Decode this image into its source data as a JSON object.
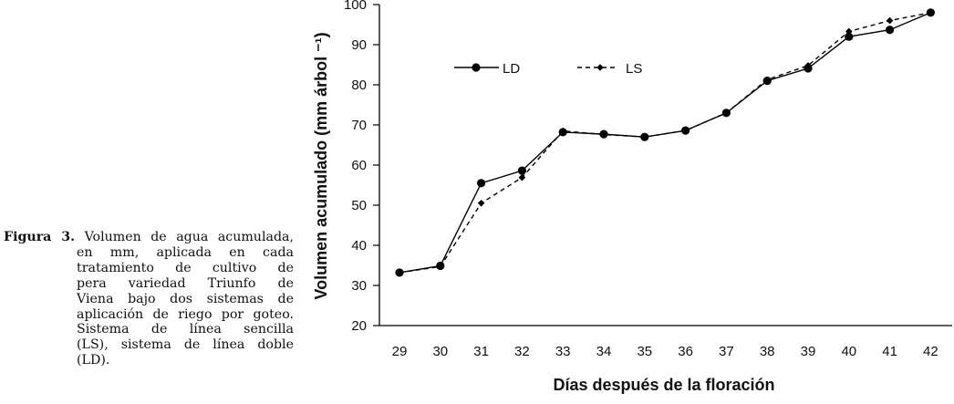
{
  "caption": {
    "label": "Figura 3.",
    "lines": [
      "Volumen de agua acumulada,",
      "en mm, aplicada en cada",
      "tratamiento de cultivo de",
      "pera variedad Triunfo de",
      "Viena bajo dos sistemas de",
      "aplicación de riego por goteo.",
      "Sistema de línea sencilla",
      "(LS), sistema de línea doble",
      "(LD)."
    ]
  },
  "chart_data": {
    "type": "line",
    "title": "",
    "xlabel": "Días después de la floración",
    "ylabel": "Volumen acumulado (mm árbol ⁻¹)",
    "ylim": [
      20,
      100
    ],
    "yticks": [
      20,
      30,
      40,
      50,
      60,
      70,
      80,
      90,
      100
    ],
    "categories": [
      "29",
      "30",
      "31",
      "32",
      "33",
      "34",
      "35",
      "36",
      "37",
      "38",
      "39",
      "40",
      "41",
      "42"
    ],
    "grid": false,
    "legend_position": "top-left",
    "series": [
      {
        "name": "LD",
        "style": "solid",
        "marker": "circle",
        "color": "#000000",
        "values": [
          33.2,
          34.9,
          55.5,
          58.6,
          68.2,
          67.7,
          67.0,
          68.6,
          73.0,
          81.0,
          84.1,
          92.0,
          93.7,
          98.0
        ]
      },
      {
        "name": "LS",
        "style": "dashed",
        "marker": "diamond",
        "color": "#000000",
        "values": [
          33.2,
          34.7,
          50.5,
          56.9,
          68.5,
          67.6,
          67.0,
          68.6,
          73.0,
          81.3,
          84.8,
          93.3,
          96.0,
          98.0
        ]
      }
    ]
  }
}
